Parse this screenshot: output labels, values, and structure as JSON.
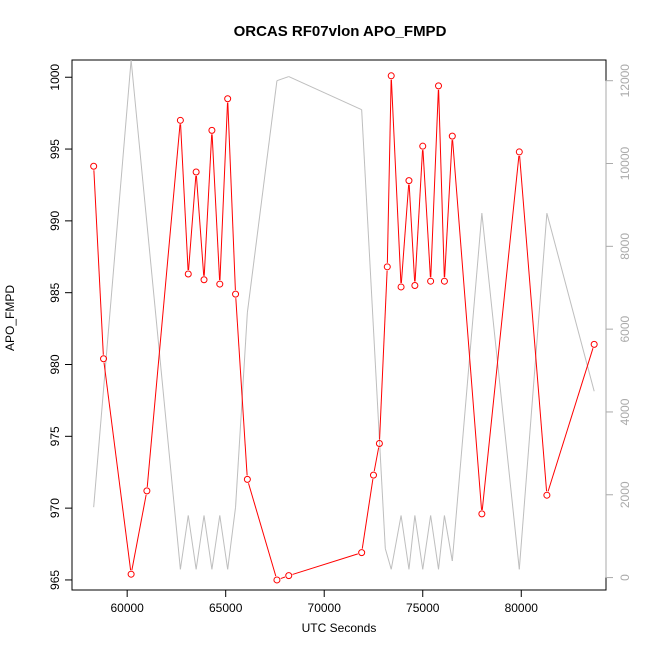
{
  "chart_data": {
    "type": "line",
    "title": "ORCAS RF07vlon APO_FMPD",
    "xlabel": "UTC Seconds",
    "ylabel": "APO_FMPD",
    "xlim": [
      57200,
      84300
    ],
    "ylim": [
      964.3,
      1001.2
    ],
    "xticks": [
      60000,
      65000,
      70000,
      75000,
      80000
    ],
    "yticks": [
      965,
      970,
      975,
      980,
      985,
      990,
      995,
      1000
    ],
    "y2lim": [
      -300,
      12500
    ],
    "y2ticks": [
      0,
      2000,
      4000,
      6000,
      8000,
      10000,
      12000
    ],
    "grid": false,
    "colors": {
      "primary": "#ff0000",
      "secondary": "#bebebe",
      "axis": "#000000",
      "axis_right": "#aaaaaa"
    },
    "series": [
      {
        "axis": "left",
        "style": "line-points",
        "x": [
          58300,
          58800,
          60200,
          61000,
          62700,
          63100,
          63500,
          63900,
          64300,
          64700,
          65100,
          65500,
          66100,
          67600,
          68200,
          71900,
          72500,
          72800,
          73200,
          73400,
          73900,
          74300,
          74600,
          75000,
          75400,
          75800,
          76100,
          76500,
          78000,
          79900,
          81300,
          83700
        ],
        "y": [
          993.8,
          980.4,
          965.4,
          971.2,
          997.0,
          986.3,
          993.4,
          985.9,
          996.3,
          985.6,
          998.5,
          984.9,
          972.0,
          965.0,
          965.3,
          966.9,
          972.3,
          974.5,
          986.8,
          1000.1,
          985.4,
          992.8,
          985.5,
          995.2,
          985.8,
          999.4,
          985.8,
          995.9,
          969.6,
          994.8,
          970.9,
          981.4
        ]
      },
      {
        "axis": "right",
        "style": "line",
        "x": [
          58300,
          60200,
          62700,
          63100,
          63500,
          63900,
          64300,
          64700,
          65100,
          65500,
          66100,
          67600,
          68200,
          71900,
          73100,
          73400,
          73900,
          74300,
          74600,
          75000,
          75400,
          75800,
          76100,
          76500,
          78000,
          79900,
          81300,
          83700
        ],
        "y": [
          1700,
          12500,
          200,
          1500,
          200,
          1500,
          200,
          1500,
          200,
          1700,
          6400,
          12000,
          12100,
          11300,
          700,
          200,
          1500,
          200,
          1500,
          200,
          1500,
          200,
          1500,
          400,
          8800,
          200,
          8800,
          4500
        ]
      }
    ]
  }
}
